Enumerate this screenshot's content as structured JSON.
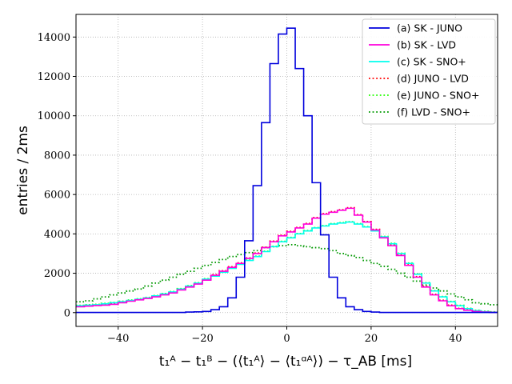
{
  "chart_data": {
    "type": "histogram",
    "xlabel": "t₁ᴬ − t₁ᴮ − (⟨t₁ᴬ⟩ − ⟨t₁ᵅᴬ⟩) − τ_AB [ms]",
    "ylabel": "entries / 2ms",
    "xlim": [
      -50,
      50
    ],
    "ylim": [
      -700,
      15150
    ],
    "x_ticks": [
      -40,
      -20,
      0,
      20,
      40
    ],
    "y_ticks": [
      0,
      2000,
      4000,
      6000,
      8000,
      10000,
      12000,
      14000
    ],
    "grid": true,
    "legend_position": "top-right",
    "bin_width": 2,
    "bin_edges_start": -50,
    "series": [
      {
        "name": "(a) SK - JUNO",
        "color": "#0000dd",
        "style": "solid",
        "values": [
          10,
          10,
          10,
          10,
          10,
          10,
          10,
          10,
          10,
          10,
          10,
          10,
          10,
          30,
          40,
          60,
          150,
          300,
          750,
          1800,
          3650,
          6450,
          9650,
          12650,
          14150,
          14450,
          12400,
          10000,
          6600,
          3950,
          1800,
          750,
          300,
          150,
          60,
          30,
          10,
          10,
          10,
          10,
          10,
          10,
          10,
          10,
          10,
          10,
          10,
          10,
          10,
          10
        ]
      },
      {
        "name": "(b) SK - LVD",
        "color": "#ff00dd",
        "style": "solid",
        "values": [
          300,
          330,
          360,
          380,
          420,
          500,
          580,
          650,
          720,
          800,
          900,
          1000,
          1150,
          1300,
          1450,
          1650,
          1900,
          2100,
          2300,
          2500,
          2750,
          3000,
          3300,
          3600,
          3900,
          4100,
          4300,
          4500,
          4800,
          5000,
          5100,
          5200,
          5300,
          4950,
          4600,
          4200,
          3800,
          3400,
          2900,
          2400,
          1800,
          1300,
          900,
          600,
          350,
          200,
          120,
          60,
          30,
          10
        ]
      },
      {
        "name": "(c) SK - SNO+",
        "color": "#00ffee",
        "style": "solid",
        "values": [
          350,
          380,
          400,
          450,
          500,
          560,
          620,
          680,
          750,
          850,
          950,
          1050,
          1200,
          1350,
          1500,
          1700,
          1850,
          2050,
          2250,
          2450,
          2650,
          2850,
          3100,
          3350,
          3600,
          3800,
          4000,
          4150,
          4300,
          4400,
          4500,
          4550,
          4600,
          4500,
          4350,
          4150,
          3850,
          3500,
          3000,
          2500,
          1950,
          1500,
          1100,
          800,
          550,
          350,
          200,
          100,
          50,
          20
        ]
      },
      {
        "name": "(d) JUNO - LVD",
        "color": "#ff0000",
        "style": "dotted",
        "values": [
          320,
          340,
          370,
          400,
          440,
          520,
          600,
          670,
          740,
          820,
          920,
          1020,
          1170,
          1320,
          1480,
          1680,
          1930,
          2130,
          2330,
          2530,
          2780,
          3030,
          3330,
          3630,
          3930,
          4130,
          4330,
          4530,
          4830,
          5030,
          5130,
          5230,
          5330,
          4980,
          4630,
          4230,
          3830,
          3430,
          2930,
          2430,
          1830,
          1330,
          930,
          630,
          380,
          220,
          140,
          80,
          40,
          20
        ]
      },
      {
        "name": "(e) JUNO - SNO+",
        "color": "#22ff00",
        "style": "dotted",
        "values": [
          370,
          400,
          420,
          470,
          520,
          580,
          640,
          700,
          770,
          870,
          970,
          1070,
          1220,
          1370,
          1520,
          1720,
          1870,
          2070,
          2270,
          2470,
          2670,
          2870,
          3120,
          3370,
          3620,
          3820,
          4020,
          4170,
          4320,
          4420,
          4520,
          4570,
          4620,
          4520,
          4370,
          4170,
          3870,
          3520,
          3020,
          2520,
          1970,
          1520,
          1120,
          820,
          570,
          370,
          220,
          120,
          70,
          40
        ]
      },
      {
        "name": "(f) LVD - SNO+",
        "color": "#009900",
        "style": "dotted",
        "values": [
          550,
          600,
          700,
          800,
          900,
          1000,
          1100,
          1200,
          1350,
          1500,
          1650,
          1800,
          1950,
          2100,
          2250,
          2400,
          2550,
          2700,
          2850,
          2950,
          3050,
          3150,
          3300,
          3350,
          3400,
          3450,
          3400,
          3350,
          3300,
          3250,
          3150,
          3000,
          2900,
          2800,
          2650,
          2500,
          2350,
          2200,
          2000,
          1800,
          1600,
          1400,
          1250,
          1100,
          950,
          800,
          650,
          500,
          450,
          400
        ]
      }
    ]
  }
}
